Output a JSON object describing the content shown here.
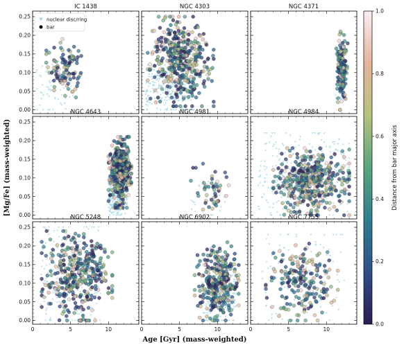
{
  "chart_data": {
    "type": "scatter",
    "layout": "3x3 grid of panels sharing axes",
    "xlabel": "Age [Gyr] (mass-weighted)",
    "ylabel": "[Mg/Fe] (mass-weighted)",
    "xlim": [
      0,
      14
    ],
    "ylim": [
      -0.01,
      0.265
    ],
    "x_ticks": [
      0,
      5,
      10
    ],
    "y_ticks": [
      "0.00",
      "0.05",
      "0.10",
      "0.15",
      "0.20",
      "0.25"
    ],
    "x_tick_labels": [
      "0",
      "5",
      "10"
    ],
    "legend": {
      "location": "top-left of first panel",
      "entries": [
        {
          "label": "nuclear disc/ring",
          "marker": "triangle-down",
          "color": "#a9d8e6"
        },
        {
          "label": "bar",
          "marker": "circle",
          "color": "#000000"
        }
      ]
    },
    "colorbar": {
      "label": "Distance from bar major axis",
      "range": [
        0.0,
        1.0
      ],
      "ticks": [
        "0.0",
        "0.2",
        "0.4",
        "0.6",
        "0.8",
        "1.0"
      ],
      "colors": [
        "#2d1b50",
        "#2f4f86",
        "#2f7d8f",
        "#5aa47e",
        "#b6c27f",
        "#e4b39b",
        "#fbeef4"
      ]
    },
    "panels": [
      {
        "title": "IC 1438",
        "disc": {
          "x": [
            0.5,
            5.5
          ],
          "y": [
            0.0,
            0.13
          ]
        },
        "bar": {
          "x": [
            1.8,
            7.0
          ],
          "y": [
            0.03,
            0.19
          ]
        },
        "n_bar": 110
      },
      {
        "title": "NGC 4303",
        "disc": {
          "x": [
            0.5,
            7.0
          ],
          "y": [
            0.0,
            0.12
          ]
        },
        "bar": {
          "x": [
            0.8,
            9.5
          ],
          "y": [
            0.01,
            0.25
          ]
        },
        "n_bar": 420
      },
      {
        "title": "NGC 4371",
        "disc": {
          "x": [
            11.2,
            12.5
          ],
          "y": [
            0.03,
            0.16
          ]
        },
        "bar": {
          "x": [
            11.3,
            12.8
          ],
          "y": [
            0.0,
            0.22
          ]
        },
        "n_bar": 150
      },
      {
        "title": "NGC 4643",
        "disc": {
          "x": [
            10.0,
            12.5
          ],
          "y": [
            0.0,
            0.1
          ]
        },
        "bar": {
          "x": [
            10.0,
            13.0
          ],
          "y": [
            0.02,
            0.21
          ]
        },
        "n_bar": 420
      },
      {
        "title": "NGC 4981",
        "disc": {
          "x": [
            6.5,
            11.0
          ],
          "y": [
            0.0,
            0.09
          ]
        },
        "bar": {
          "x": [
            6.5,
            11.5
          ],
          "y": [
            0.0,
            0.14
          ]
        },
        "n_bar": 45
      },
      {
        "title": "NGC 4984",
        "disc": {
          "x": [
            1.0,
            13.0
          ],
          "y": [
            0.0,
            0.22
          ]
        },
        "bar": {
          "x": [
            3.0,
            13.0
          ],
          "y": [
            0.0,
            0.18
          ]
        },
        "n_bar": 450
      },
      {
        "title": "NGC 5248",
        "disc": {
          "x": [
            1.0,
            9.0
          ],
          "y": [
            0.0,
            0.25
          ]
        },
        "bar": {
          "x": [
            1.2,
            10.5
          ],
          "y": [
            0.0,
            0.24
          ]
        },
        "n_bar": 380
      },
      {
        "title": "NGC 6902",
        "disc": {
          "x": [
            8.0,
            12.5
          ],
          "y": [
            0.0,
            0.12
          ]
        },
        "bar": {
          "x": [
            7.0,
            12.8
          ],
          "y": [
            0.0,
            0.21
          ]
        },
        "n_bar": 320
      },
      {
        "title": "NGC 7755",
        "disc": {
          "x": [
            1.5,
            12.5
          ],
          "y": [
            0.0,
            0.23
          ]
        },
        "bar": {
          "x": [
            2.0,
            11.5
          ],
          "y": [
            0.0,
            0.22
          ]
        },
        "n_bar": 200
      }
    ]
  }
}
